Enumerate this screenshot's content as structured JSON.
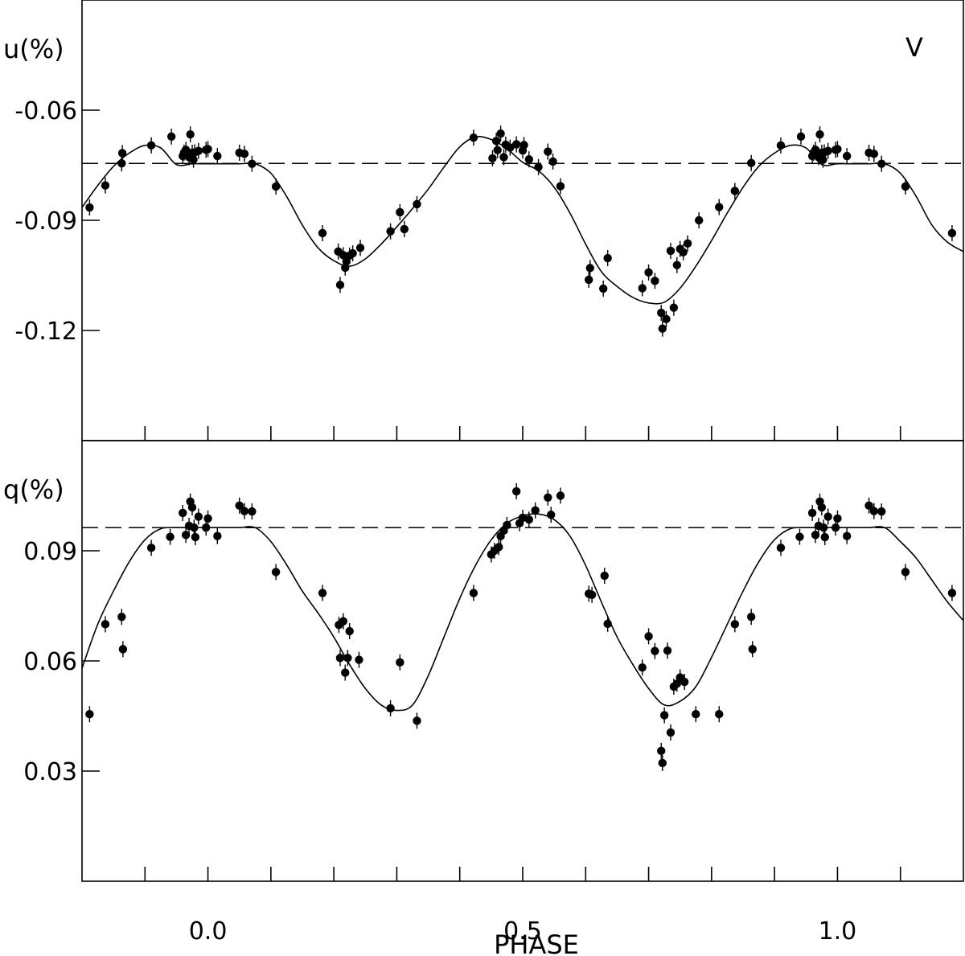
{
  "chart_data": [
    {
      "type": "scatter",
      "panel": "upper",
      "band_label": "V",
      "ylabel": "u(%)",
      "ylim": [
        -0.15,
        -0.03
      ],
      "xlim": [
        -0.2,
        1.2
      ],
      "y_ticks": [
        -0.06,
        -0.09,
        -0.12
      ],
      "y_tick_labels": [
        "-0.06",
        "-0.09",
        "-0.12"
      ],
      "x_ticks": [
        -0.1,
        0.0,
        0.1,
        0.2,
        0.3,
        0.4,
        0.5,
        0.6,
        0.7,
        0.8,
        0.9,
        1.0,
        1.1
      ],
      "reference_line": -0.0745,
      "series": [
        {
          "kind": "points",
          "x": [
            -0.188,
            -0.163,
            -0.136,
            -0.137,
            -0.09,
            -0.058,
            -0.04,
            -0.038,
            -0.035,
            -0.03,
            -0.028,
            -0.025,
            -0.023,
            -0.021,
            -0.015,
            -0.003,
            0.0,
            0.015,
            0.05,
            0.058,
            0.07,
            0.108,
            0.182,
            0.207,
            0.21,
            0.215,
            0.218,
            0.22,
            0.225,
            0.23,
            0.242,
            0.29,
            0.305,
            0.312,
            0.332,
            0.422,
            0.452,
            0.458,
            0.46,
            0.465,
            0.47,
            0.473,
            0.48,
            0.49,
            0.5,
            0.502,
            0.51,
            0.525,
            0.54,
            0.548,
            0.56,
            0.605,
            0.607,
            0.628,
            0.635,
            0.69,
            0.7,
            0.71,
            0.72,
            0.722,
            0.728,
            0.735,
            0.74,
            0.745,
            0.75,
            0.755,
            0.762,
            0.78,
            0.812,
            0.837,
            0.863,
            0.91,
            0.942,
            0.96,
            0.962,
            0.965,
            0.97,
            0.972,
            0.975,
            0.977,
            0.979,
            0.985,
            0.997,
            1.0,
            1.015,
            1.05,
            1.058,
            1.07,
            1.108,
            1.182
          ],
          "y": [
            -0.0865,
            -0.0805,
            -0.0717,
            -0.0745,
            -0.0696,
            -0.0672,
            -0.0725,
            -0.0716,
            -0.0708,
            -0.0728,
            -0.0666,
            -0.0716,
            -0.0735,
            -0.0715,
            -0.0711,
            -0.0708,
            -0.0706,
            -0.0725,
            -0.0716,
            -0.0719,
            -0.0746,
            -0.0808,
            -0.0935,
            -0.0985,
            -0.1076,
            -0.0995,
            -0.1029,
            -0.1012,
            -0.0996,
            -0.099,
            -0.0975,
            -0.093,
            -0.0878,
            -0.0924,
            -0.0856,
            -0.0675,
            -0.0731,
            -0.0684,
            -0.0709,
            -0.0664,
            -0.0728,
            -0.0694,
            -0.0702,
            -0.0693,
            -0.071,
            -0.0695,
            -0.0734,
            -0.0755,
            -0.0713,
            -0.074,
            -0.0807,
            -0.1062,
            -0.103,
            -0.1086,
            -0.1003,
            -0.1085,
            -0.1042,
            -0.1065,
            -0.1152,
            -0.1195,
            -0.1169,
            -0.0983,
            -0.1138,
            -0.1022,
            -0.0978,
            -0.0987,
            -0.0963,
            -0.09,
            -0.0864,
            -0.082,
            -0.0744,
            -0.0696,
            -0.0672,
            -0.0725,
            -0.0716,
            -0.0708,
            -0.0728,
            -0.0666,
            -0.0716,
            -0.0735,
            -0.0715,
            -0.0711,
            -0.0708,
            -0.0706,
            -0.0725,
            -0.0716,
            -0.0719,
            -0.0746,
            -0.0808,
            -0.0935
          ]
        },
        {
          "kind": "fit_curve",
          "x": [
            -0.2,
            -0.175,
            -0.15,
            -0.125,
            -0.1,
            -0.075,
            -0.05,
            -0.025,
            0.0,
            0.025,
            0.05,
            0.075,
            0.1,
            0.125,
            0.15,
            0.175,
            0.2,
            0.225,
            0.25,
            0.275,
            0.3,
            0.325,
            0.35,
            0.375,
            0.4,
            0.425,
            0.45,
            0.475,
            0.5,
            0.525,
            0.55,
            0.575,
            0.6,
            0.625,
            0.65,
            0.675,
            0.7,
            0.725,
            0.75,
            0.775,
            0.8,
            0.825,
            0.85,
            0.875,
            0.9,
            0.925,
            0.95,
            0.975,
            1.0,
            1.025,
            1.05,
            1.075,
            1.1,
            1.125,
            1.15,
            1.175,
            1.2
          ],
          "y": [
            -0.0865,
            -0.0805,
            -0.0753,
            -0.0717,
            -0.0696,
            -0.0703,
            -0.0748,
            -0.0746,
            -0.0746,
            -0.0746,
            -0.0746,
            -0.0746,
            -0.0772,
            -0.0835,
            -0.0913,
            -0.0975,
            -0.101,
            -0.1025,
            -0.1005,
            -0.0965,
            -0.0918,
            -0.0868,
            -0.0815,
            -0.0755,
            -0.07,
            -0.0673,
            -0.068,
            -0.0705,
            -0.0742,
            -0.0765,
            -0.081,
            -0.088,
            -0.0965,
            -0.104,
            -0.108,
            -0.111,
            -0.1125,
            -0.1123,
            -0.1085,
            -0.1025,
            -0.0955,
            -0.088,
            -0.081,
            -0.0753,
            -0.0717,
            -0.0696,
            -0.0703,
            -0.0748,
            -0.0746,
            -0.0746,
            -0.0746,
            -0.0746,
            -0.0772,
            -0.0835,
            -0.0913,
            -0.096,
            -0.0985
          ]
        }
      ]
    },
    {
      "type": "scatter",
      "panel": "lower",
      "ylabel": "q(%)",
      "xlabel": "PHASE",
      "ylim": [
        0.0,
        0.12
      ],
      "xlim": [
        -0.2,
        1.2
      ],
      "y_ticks": [
        0.09,
        0.06,
        0.03
      ],
      "y_tick_labels": [
        "0.09",
        "0.06",
        "0.03"
      ],
      "x_ticks": [
        -0.1,
        0.0,
        0.1,
        0.2,
        0.3,
        0.4,
        0.5,
        0.6,
        0.7,
        0.8,
        0.9,
        1.0,
        1.1
      ],
      "x_tick_labels": [
        "0.0",
        "0.5",
        "1.0"
      ],
      "x_labeled_ticks": [
        0.0,
        0.5,
        1.0
      ],
      "reference_line": 0.0963,
      "series": [
        {
          "kind": "points",
          "x": [
            -0.188,
            -0.163,
            -0.137,
            -0.135,
            -0.09,
            -0.06,
            -0.04,
            -0.035,
            -0.03,
            -0.028,
            -0.025,
            -0.022,
            -0.02,
            -0.015,
            -0.003,
            0.0,
            0.015,
            0.05,
            0.058,
            0.07,
            0.108,
            0.182,
            0.208,
            0.21,
            0.215,
            0.218,
            0.222,
            0.225,
            0.24,
            0.29,
            0.305,
            0.332,
            0.422,
            0.45,
            0.455,
            0.462,
            0.465,
            0.47,
            0.475,
            0.49,
            0.495,
            0.5,
            0.51,
            0.52,
            0.54,
            0.545,
            0.56,
            0.605,
            0.61,
            0.63,
            0.635,
            0.69,
            0.7,
            0.71,
            0.72,
            0.722,
            0.725,
            0.73,
            0.735,
            0.74,
            0.745,
            0.75,
            0.757,
            0.775,
            0.812,
            0.837,
            0.863,
            0.865,
            0.91,
            0.94,
            0.96,
            0.965,
            0.97,
            0.972,
            0.975,
            0.978,
            0.98,
            0.985,
            0.997,
            1.0,
            1.015,
            1.05,
            1.058,
            1.07,
            1.108,
            1.182
          ],
          "y": [
            0.0455,
            0.07,
            0.072,
            0.0632,
            0.0908,
            0.0938,
            0.1003,
            0.0943,
            0.0968,
            0.1034,
            0.1018,
            0.0963,
            0.0937,
            0.0993,
            0.0963,
            0.0988,
            0.094,
            0.1023,
            0.1008,
            0.1007,
            0.0842,
            0.0785,
            0.0698,
            0.0608,
            0.0708,
            0.0568,
            0.0608,
            0.0681,
            0.0603,
            0.0471,
            0.0596,
            0.0437,
            0.0785,
            0.089,
            0.09,
            0.091,
            0.094,
            0.0955,
            0.097,
            0.1062,
            0.0975,
            0.099,
            0.0985,
            0.101,
            0.1045,
            0.0998,
            0.105,
            0.0783,
            0.078,
            0.0832,
            0.0701,
            0.0582,
            0.0667,
            0.0627,
            0.0355,
            0.0322,
            0.0452,
            0.0628,
            0.0405,
            0.053,
            0.0538,
            0.0555,
            0.0543,
            0.0455,
            0.0455,
            0.07,
            0.072,
            0.0632,
            0.0908,
            0.0938,
            0.1003,
            0.0943,
            0.0968,
            0.1034,
            0.1018,
            0.0963,
            0.0937,
            0.0993,
            0.0963,
            0.0988,
            0.094,
            0.1023,
            0.1008,
            0.1007,
            0.0842,
            0.0785
          ]
        },
        {
          "kind": "fit_curve",
          "x": [
            -0.2,
            -0.175,
            -0.15,
            -0.125,
            -0.1,
            -0.075,
            -0.05,
            -0.025,
            0.0,
            0.025,
            0.05,
            0.075,
            0.1,
            0.125,
            0.15,
            0.175,
            0.2,
            0.225,
            0.25,
            0.275,
            0.3,
            0.325,
            0.35,
            0.375,
            0.4,
            0.425,
            0.45,
            0.475,
            0.5,
            0.525,
            0.55,
            0.575,
            0.6,
            0.625,
            0.65,
            0.675,
            0.7,
            0.725,
            0.75,
            0.775,
            0.8,
            0.825,
            0.85,
            0.875,
            0.9,
            0.925,
            0.95,
            0.975,
            1.0,
            1.025,
            1.05,
            1.075,
            1.1,
            1.125,
            1.15,
            1.175,
            1.2
          ],
          "y": [
            0.058,
            0.07,
            0.079,
            0.087,
            0.093,
            0.096,
            0.0963,
            0.0963,
            0.0963,
            0.0963,
            0.0963,
            0.0963,
            0.0925,
            0.0862,
            0.079,
            0.073,
            0.0665,
            0.059,
            0.0525,
            0.048,
            0.0465,
            0.048,
            0.056,
            0.0665,
            0.077,
            0.086,
            0.093,
            0.0975,
            0.0995,
            0.1,
            0.0985,
            0.094,
            0.086,
            0.076,
            0.0665,
            0.059,
            0.0525,
            0.048,
            0.049,
            0.053,
            0.061,
            0.07,
            0.079,
            0.087,
            0.093,
            0.096,
            0.0963,
            0.0963,
            0.0963,
            0.0963,
            0.0963,
            0.0963,
            0.0925,
            0.088,
            0.082,
            0.076,
            0.071
          ]
        }
      ]
    }
  ]
}
